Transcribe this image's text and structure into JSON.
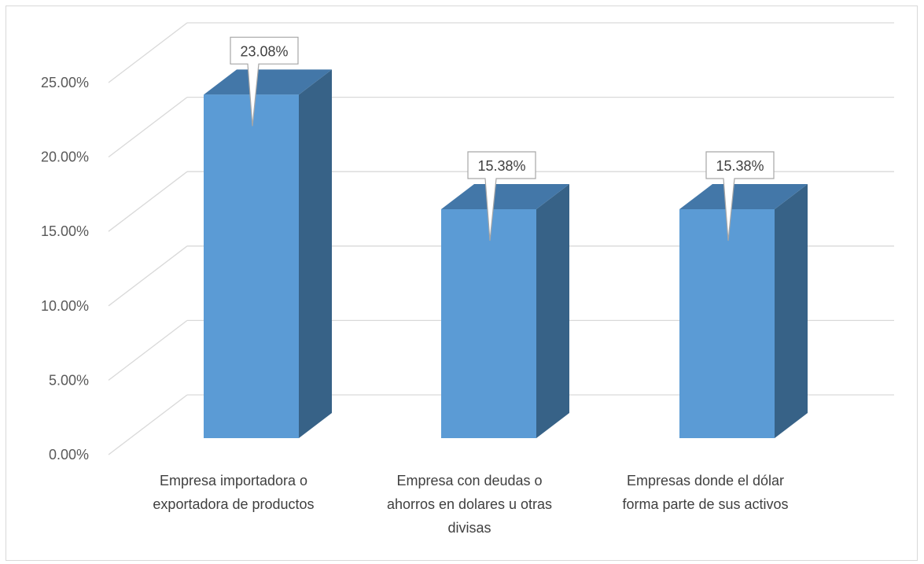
{
  "chart_data": {
    "type": "bar",
    "three_d": true,
    "categories": [
      [
        "Empresa importadora o",
        "exportadora de productos"
      ],
      [
        "Empresa con deudas o",
        "ahorros en dolares u otras",
        "divisas"
      ],
      [
        "Empresas donde el dólar",
        "forma parte de sus activos"
      ]
    ],
    "values": [
      23.08,
      15.38,
      15.38
    ],
    "data_labels": [
      "23.08%",
      "15.38%",
      "15.38%"
    ],
    "y_ticks": [
      "0.00%",
      "5.00%",
      "10.00%",
      "15.00%",
      "20.00%",
      "25.00%"
    ],
    "ylim": [
      0,
      25
    ],
    "grid": true,
    "legend": "none",
    "colors": {
      "front": "#5b9bd5",
      "side": "#376287",
      "top": "#4377a8",
      "grid": "#d9d9d9",
      "label_border": "#a6a6a6"
    }
  }
}
